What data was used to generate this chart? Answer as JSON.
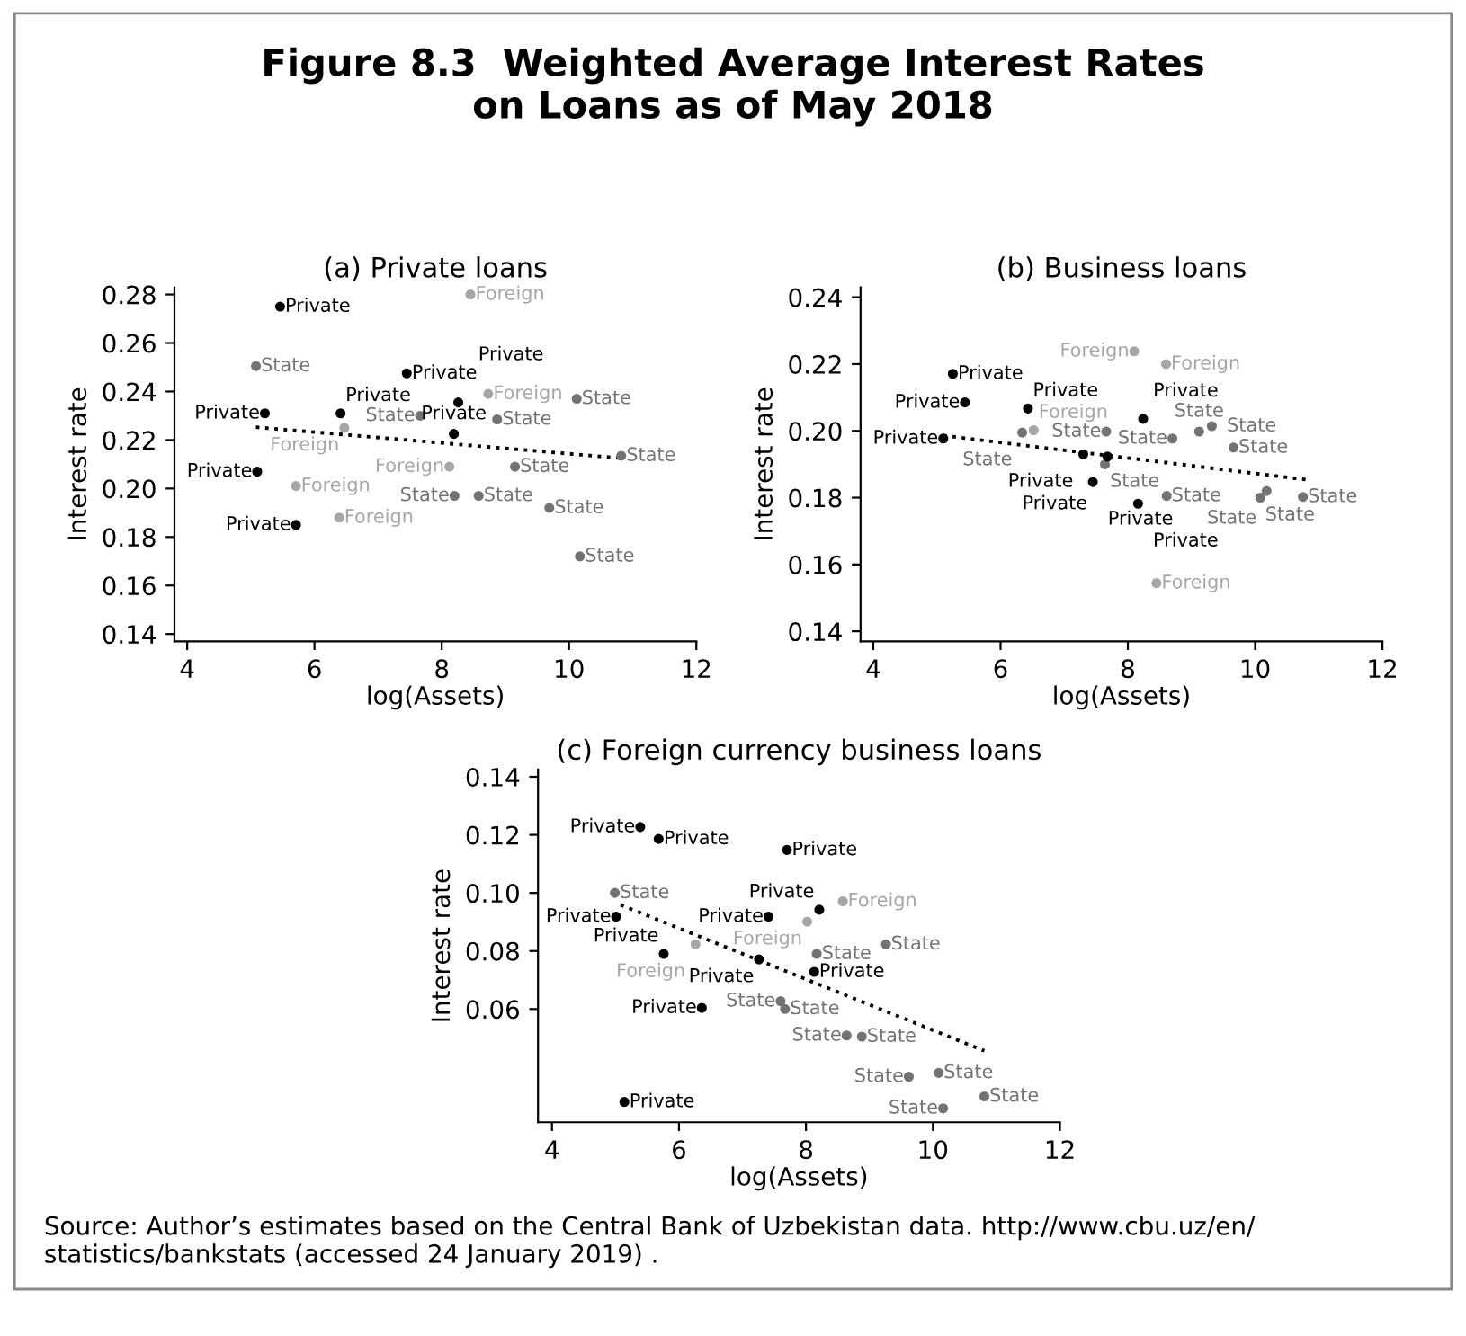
{
  "chart_data": [
    {
      "type": "scatter",
      "title": "(a) Private loans",
      "xlabel": "log(Assets)",
      "ylabel": "Interest rate",
      "annotations": [
        "Figure 8.3  Weighted Average Interest Rates\non Loans as of May 2018",
        "Source: Author’s estimates based on the Central Bank of Uzbekistan data. http://www.cbu.uz/en/ statistics/bankstats (accessed 24 January 2019) ."
      ],
      "xlim": [
        3.8,
        12
      ],
      "xticks": [
        4,
        6,
        8,
        10,
        12
      ],
      "ylim": [
        0.137,
        0.283
      ],
      "yticks": [
        {
          "value": 0.14,
          "label": "0.14"
        },
        {
          "value": 0.16,
          "label": "0.16"
        },
        {
          "value": 0.18,
          "label": "0.18"
        },
        {
          "value": 0.2,
          "label": "0.20"
        },
        {
          "value": 0.22,
          "label": "0.22"
        },
        {
          "value": 0.24,
          "label": "0.24"
        },
        {
          "value": 0.26,
          "label": "0.26"
        },
        {
          "value": 0.28,
          "label": "0.28"
        }
      ],
      "grid": false,
      "legend": false,
      "marker": "circle",
      "series": [
        {
          "name": "Foreign",
          "color": "#a6a6a6",
          "x": [
            8.45,
            8.73,
            6.47,
            8.12,
            5.71,
            6.39
          ],
          "values": [
            0.28,
            0.239,
            0.225,
            0.209,
            0.201,
            0.188
          ]
        },
        {
          "name": "State",
          "color": "#737373",
          "x": [
            5.08,
            7.66,
            8.87,
            10.12,
            10.82,
            9.15,
            8.2,
            8.58,
            9.69,
            10.17
          ],
          "values": [
            0.2505,
            0.23,
            0.2285,
            0.237,
            0.2135,
            0.209,
            0.197,
            0.197,
            0.192,
            0.172
          ]
        },
        {
          "name": "Private",
          "color": "#000000",
          "x": [
            5.46,
            7.45,
            5.22,
            6.41,
            8.26,
            8.19,
            5.1,
            5.71
          ],
          "values": [
            0.275,
            0.2475,
            0.231,
            0.231,
            0.2355,
            0.2225,
            0.207,
            0.185
          ]
        },
        {
          "type": "line",
          "color": "#000000",
          "line_style": "dotted",
          "marker": "none",
          "x": [
            5.08,
            10.82
          ],
          "values": [
            0.2253,
            0.2125
          ]
        }
      ]
    },
    {
      "type": "scatter",
      "title": "(b) Business loans",
      "xlabel": "log(Assets)",
      "ylabel": "Interest rate",
      "xlim": [
        3.8,
        12
      ],
      "xticks": [
        4,
        6,
        8,
        10,
        12
      ],
      "ylim": [
        0.137,
        0.243
      ],
      "yticks": [
        {
          "value": 0.14,
          "label": "0.14"
        },
        {
          "value": 0.16,
          "label": "0.16"
        },
        {
          "value": 0.18,
          "label": "0.18"
        },
        {
          "value": 0.2,
          "label": "0.20"
        },
        {
          "value": 0.22,
          "label": "0.22"
        },
        {
          "value": 0.24,
          "label": "0.24"
        }
      ],
      "grid": false,
      "legend": false,
      "marker": "circle",
      "series": [
        {
          "name": "Foreign",
          "color": "#a6a6a6",
          "x": [
            8.1,
            8.6,
            6.52,
            8.45
          ],
          "values": [
            0.2238,
            0.22,
            0.2002,
            0.1544
          ]
        },
        {
          "name": "State",
          "color": "#737373",
          "x": [
            6.34,
            7.66,
            9.12,
            8.7,
            9.66,
            7.64,
            9.32,
            8.61,
            10.08,
            10.18,
            10.75
          ],
          "values": [
            0.1995,
            0.1998,
            0.1998,
            0.1977,
            0.195,
            0.19,
            0.2014,
            0.1805,
            0.18,
            0.182,
            0.1802
          ]
        },
        {
          "name": "Private",
          "color": "#000000",
          "x": [
            5.25,
            5.44,
            6.43,
            5.1,
            8.24,
            7.3,
            7.68,
            7.45,
            8.16
          ],
          "values": [
            0.2171,
            0.2085,
            0.2067,
            0.1977,
            0.2036,
            0.193,
            0.1923,
            0.1847,
            0.1782
          ]
        },
        {
          "type": "line",
          "color": "#000000",
          "line_style": "dotted",
          "marker": "none",
          "x": [
            5.1,
            10.8
          ],
          "values": [
            0.1986,
            0.1854
          ]
        }
      ]
    },
    {
      "type": "scatter",
      "title": "(c) Foreign currency business loans",
      "xlabel": "log(Assets)",
      "ylabel": "Interest rate",
      "xlim": [
        3.78,
        12
      ],
      "xticks": [
        4,
        6,
        8,
        10,
        12
      ],
      "ylim": [
        0.021,
        0.1425
      ],
      "yticks": [
        {
          "value": 0.06,
          "label": "0.06"
        },
        {
          "value": 0.08,
          "label": "0.08"
        },
        {
          "value": 0.1,
          "label": "0.10"
        },
        {
          "value": 0.12,
          "label": "0.12"
        },
        {
          "value": 0.14,
          "label": "0.14"
        }
      ],
      "grid": false,
      "legend": false,
      "marker": "circle",
      "series": [
        {
          "name": "Foreign",
          "color": "#a6a6a6",
          "x": [
            8.58,
            8.02,
            6.26
          ],
          "values": [
            0.0971,
            0.0901,
            0.0823
          ]
        },
        {
          "name": "State",
          "color": "#737373",
          "x": [
            4.99,
            9.26,
            8.17,
            7.6,
            7.67,
            8.64,
            8.88,
            9.62,
            10.09,
            10.81,
            10.16
          ],
          "values": [
            0.1,
            0.0823,
            0.079,
            0.0627,
            0.06,
            0.0509,
            0.0505,
            0.0367,
            0.038,
            0.0299,
            0.0258
          ]
        },
        {
          "name": "Private",
          "color": "#000000",
          "x": [
            5.39,
            5.68,
            7.7,
            5.01,
            7.41,
            8.21,
            5.76,
            7.26,
            8.13,
            6.36,
            5.14
          ],
          "values": [
            0.1227,
            0.1186,
            0.1148,
            0.0918,
            0.0918,
            0.0942,
            0.079,
            0.0771,
            0.0728,
            0.0604,
            0.028
          ]
        },
        {
          "type": "line",
          "color": "#000000",
          "line_style": "dotted",
          "marker": "none",
          "x": [
            5.08,
            10.81
          ],
          "values": [
            0.0959,
            0.0456
          ]
        }
      ]
    }
  ]
}
